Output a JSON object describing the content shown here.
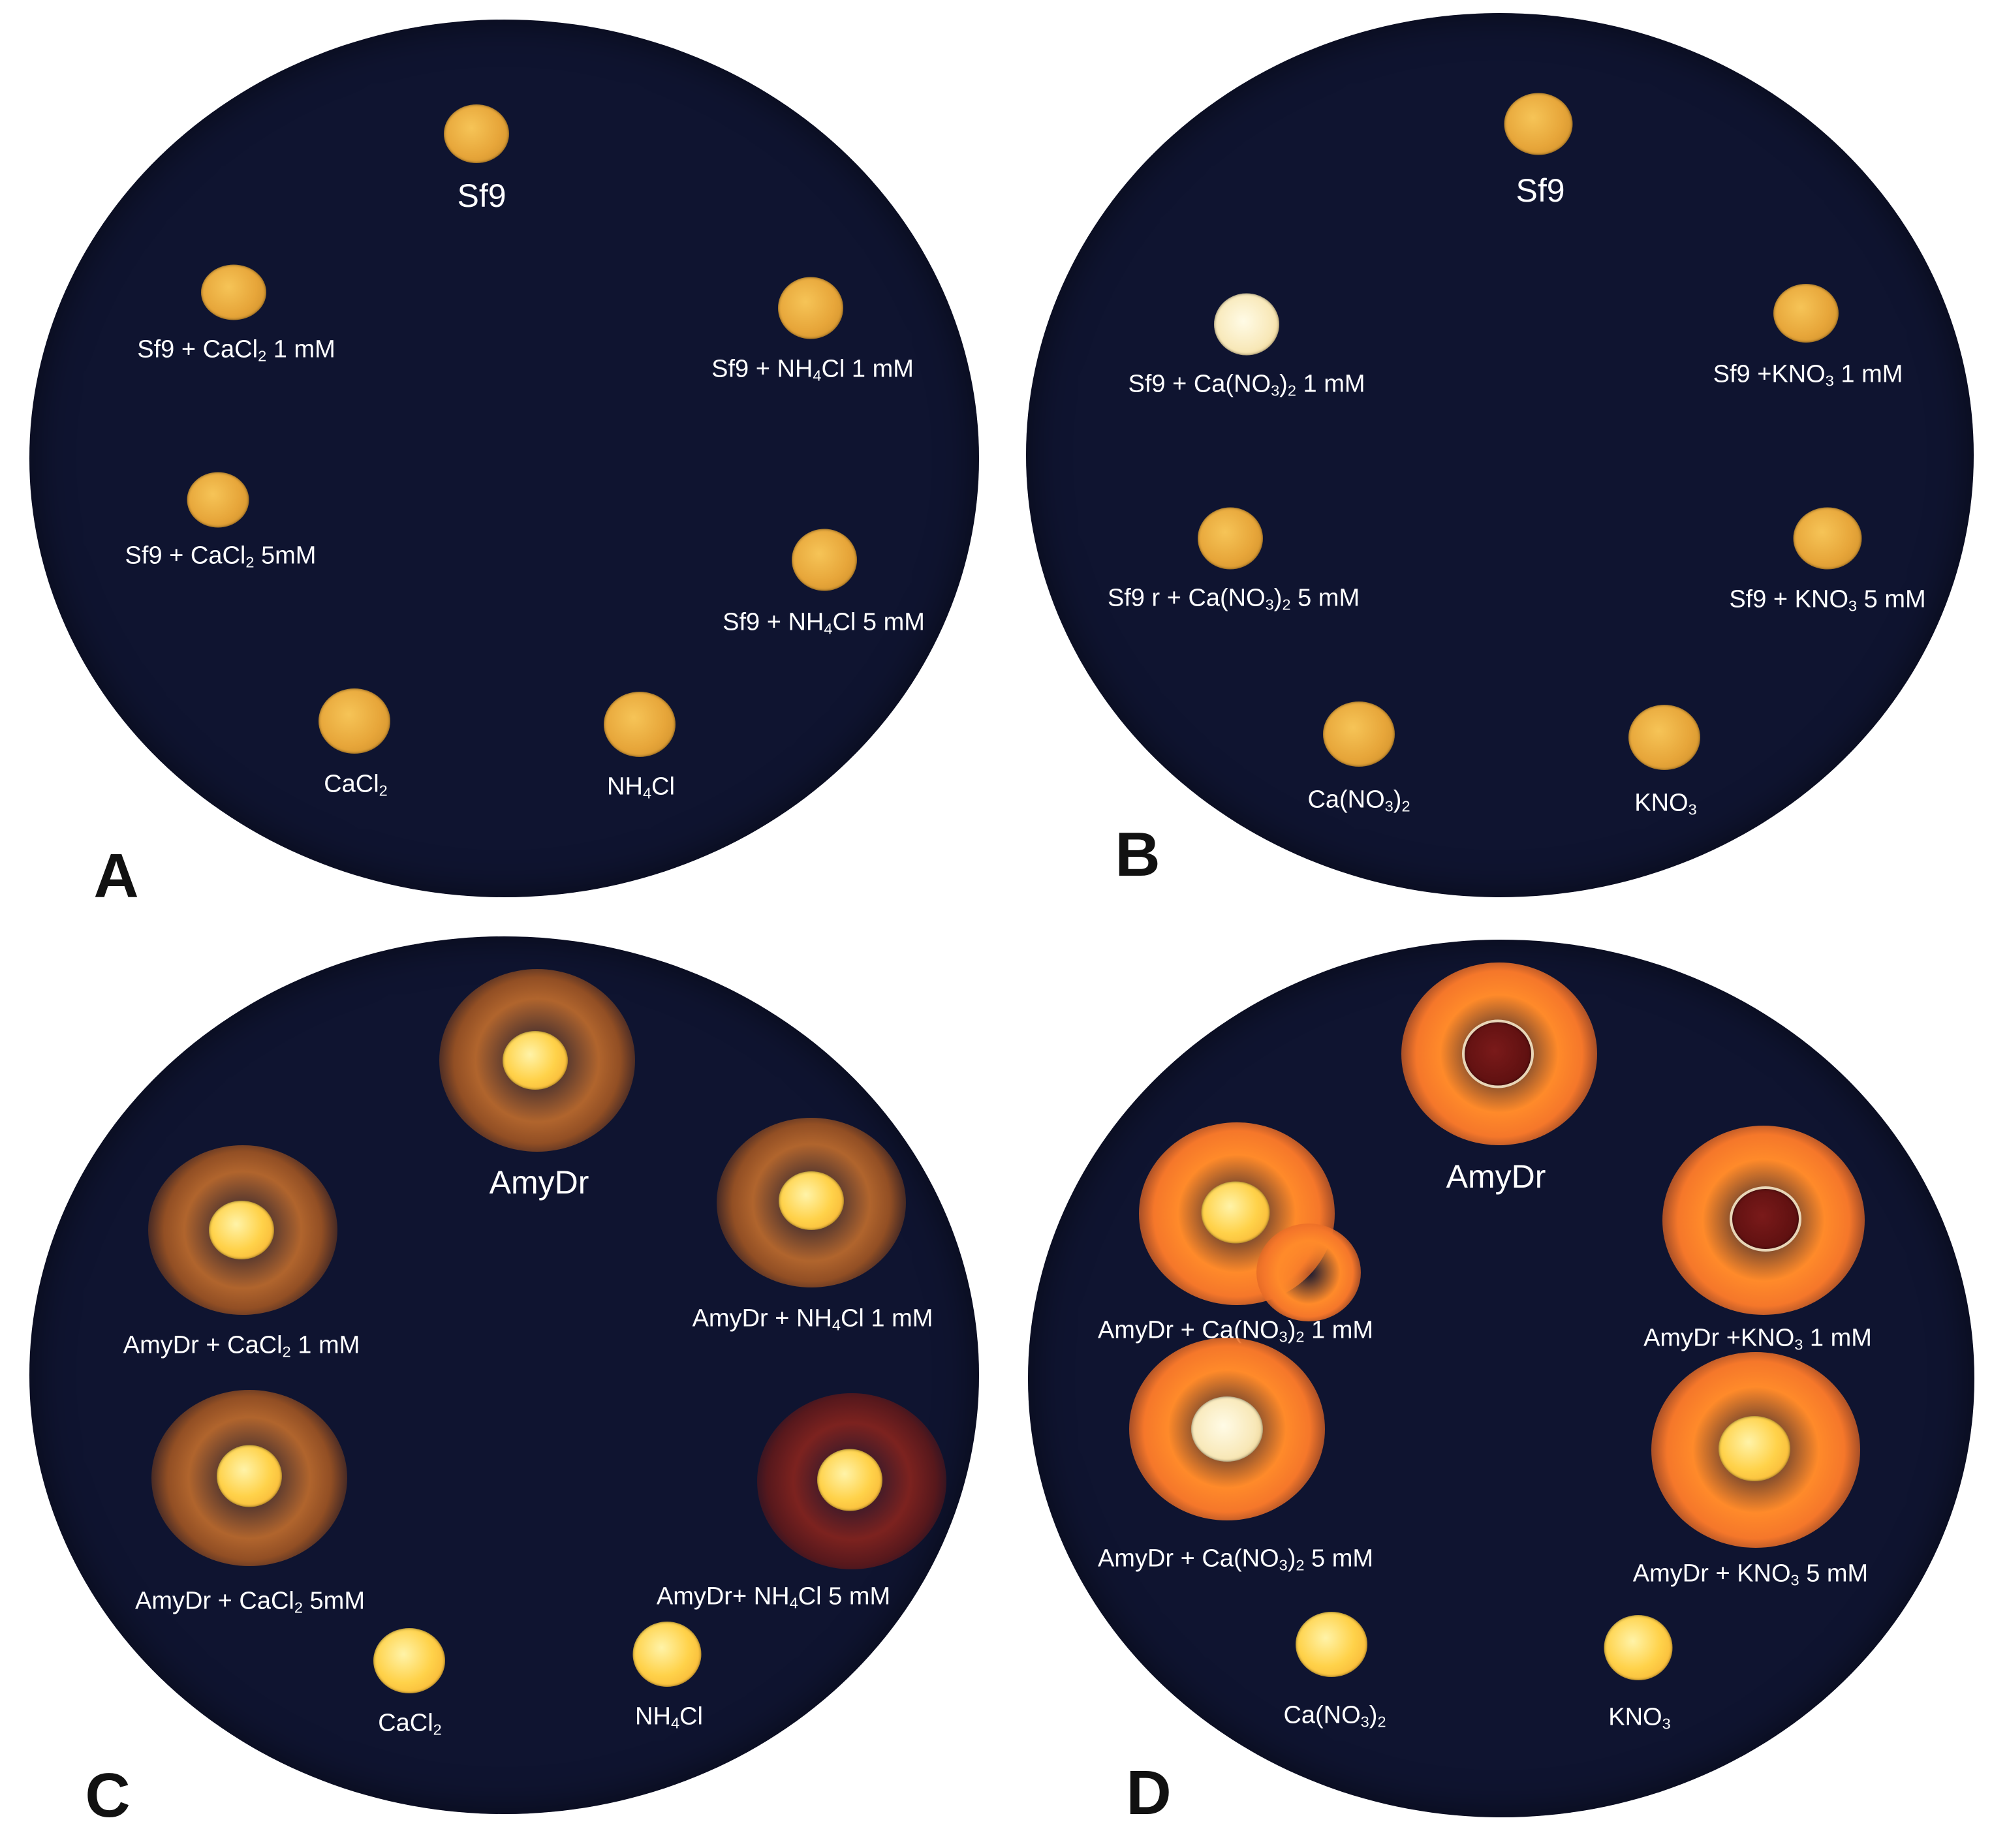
{
  "panels": [
    {
      "letter": "A",
      "labels": {
        "top": "Sf9",
        "l1": [
          "Sf9 + CaCl",
          "2",
          " 1 mM"
        ],
        "r1": [
          "Sf9 + NH",
          "4",
          "Cl 1 mM"
        ],
        "l2": [
          "Sf9 + CaCl",
          "2",
          " 5mM"
        ],
        "r2": [
          "Sf9 + NH",
          "4",
          "Cl 5 mM"
        ],
        "b1": [
          "CaCl",
          "2",
          ""
        ],
        "b2": [
          "NH",
          "4",
          "Cl"
        ]
      }
    },
    {
      "letter": "B",
      "labels": {
        "top": "Sf9",
        "l1": [
          "Sf9 + Ca(NO",
          "3",
          ")",
          "2",
          " 1 mM"
        ],
        "r1": [
          "Sf9 +KNO",
          "3",
          " 1 mM"
        ],
        "l2": [
          "Sf9 r + Ca(NO",
          "3",
          ")",
          "2",
          " 5 mM"
        ],
        "r2": [
          "Sf9 + KNO",
          "3",
          " 5 mM"
        ],
        "b1": [
          "Ca(NO",
          "3",
          ")",
          "2",
          ""
        ],
        "b2": [
          "KNO",
          "3",
          ""
        ]
      }
    },
    {
      "letter": "C",
      "labels": {
        "top": "AmyDr",
        "l1": [
          "AmyDr + CaCl",
          "2",
          " 1 mM"
        ],
        "r1": [
          "AmyDr + NH",
          "4",
          "Cl 1 mM"
        ],
        "l2": [
          "AmyDr + CaCl",
          "2",
          " 5mM"
        ],
        "r2": [
          "AmyDr+ NH",
          "4",
          "Cl 5 mM"
        ],
        "b1": [
          "CaCl",
          "2",
          ""
        ],
        "b2": [
          "NH",
          "4",
          "Cl"
        ]
      }
    },
    {
      "letter": "D",
      "labels": {
        "top": "AmyDr",
        "l1": [
          "AmyDr + Ca(NO",
          "3",
          ")",
          "2",
          " 1 mM"
        ],
        "r1": [
          "AmyDr +KNO",
          "3",
          " 1 mM"
        ],
        "l2": [
          "AmyDr + Ca(NO",
          "3",
          ")",
          "2",
          " 5 mM"
        ],
        "r2": [
          "AmyDr + KNO",
          "3",
          " 5 mM"
        ],
        "b1": [
          "Ca(NO",
          "3",
          ")",
          "2",
          ""
        ],
        "b2": [
          "KNO",
          "3",
          ""
        ]
      }
    }
  ],
  "colors": {
    "plate": "#0f1430",
    "well": "#e7a63a",
    "halo_dim": "#b9692d",
    "halo_bright": "#ff8a2a",
    "label": "#ffffff",
    "panel_letter": "#111111"
  }
}
